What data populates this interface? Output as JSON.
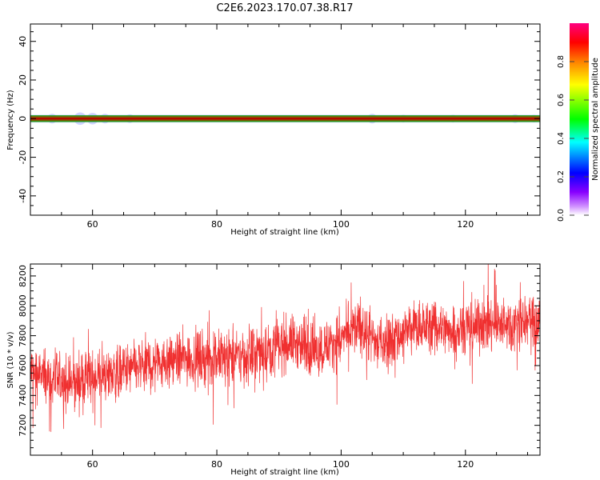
{
  "title": "C2E6.2023.170.07.38.R17",
  "colors": {
    "snr_line": "#f03030",
    "band_red": "#dd0000",
    "band_green": "#1a9f1a",
    "band_olive": "#7a5a00",
    "halo": "#b0b6ff"
  },
  "chart_data": [
    {
      "type": "heatmap",
      "xlabel": "Height of straight line (km)",
      "ylabel": "Frequency (Hz)",
      "xlim": [
        50,
        132
      ],
      "ylim": [
        -50,
        49
      ],
      "x_ticks": [
        60,
        80,
        100,
        120
      ],
      "y_ticks": [
        -40,
        -20,
        0,
        20,
        40
      ],
      "dominant_frequency_hz": 0,
      "colorbar": {
        "label": "Normalized spectral amplitude",
        "range": [
          0.0,
          1.0
        ],
        "ticks": [
          "0.0",
          "0.2",
          "0.4",
          "0.6",
          "0.8"
        ],
        "colormap": [
          "#ffffff",
          "#9900ff",
          "#0000ff",
          "#00ffff",
          "#00ff00",
          "#ffff00",
          "#ff8000",
          "#ff0000",
          "#ff0080"
        ]
      }
    },
    {
      "type": "line",
      "xlabel": "Height of straight line (km)",
      "ylabel": "SNR (10 * v/v)",
      "xlim": [
        50,
        132
      ],
      "ylim": [
        7000,
        8280
      ],
      "x_ticks": [
        60,
        80,
        100,
        120
      ],
      "y_ticks": [
        7200,
        7400,
        7600,
        7800,
        8000,
        8200
      ],
      "trend": [
        [
          50,
          7560
        ],
        [
          56,
          7470
        ],
        [
          60,
          7520
        ],
        [
          65,
          7560
        ],
        [
          70,
          7620
        ],
        [
          75,
          7650
        ],
        [
          80,
          7650
        ],
        [
          85,
          7660
        ],
        [
          88,
          7700
        ],
        [
          92,
          7760
        ],
        [
          96,
          7700
        ],
        [
          100,
          7780
        ],
        [
          103,
          7860
        ],
        [
          106,
          7740
        ],
        [
          109,
          7800
        ],
        [
          113,
          7870
        ],
        [
          117,
          7840
        ],
        [
          122,
          7870
        ],
        [
          127,
          7880
        ],
        [
          132,
          7900
        ]
      ],
      "spread": 160,
      "n_samples": 2400
    }
  ]
}
